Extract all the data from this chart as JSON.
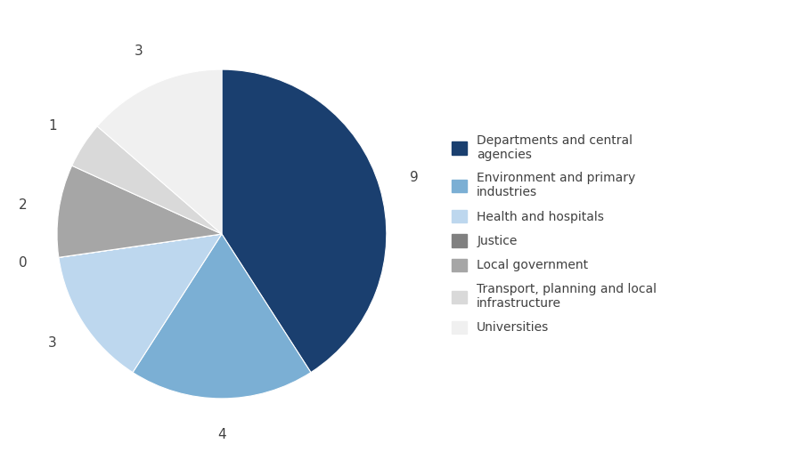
{
  "labels": [
    "Departments and central\nagencies",
    "Environment and primary\nindustries",
    "Health and hospitals",
    "Justice",
    "Local government",
    "Transport, planning and local\ninfrastructure",
    "Universities"
  ],
  "values": [
    9,
    4,
    3,
    0,
    2,
    1,
    3
  ],
  "colors": [
    "#1a3f6f",
    "#7bafd4",
    "#bdd7ee",
    "#808080",
    "#a6a6a6",
    "#d9d9d9",
    "#f0f0f0"
  ],
  "legend_labels": [
    "Departments and central\nagencies",
    "Environment and primary\nindustries",
    "Health and hospitals",
    "Justice",
    "Local government",
    "Transport, planning and local\ninfrastructure",
    "Universities"
  ],
  "startangle": 90,
  "figsize": [
    8.89,
    5.26
  ],
  "dpi": 100,
  "background_color": "#ffffff",
  "text_color": "#404040",
  "legend_fontsize": 10,
  "label_fontsize": 11
}
